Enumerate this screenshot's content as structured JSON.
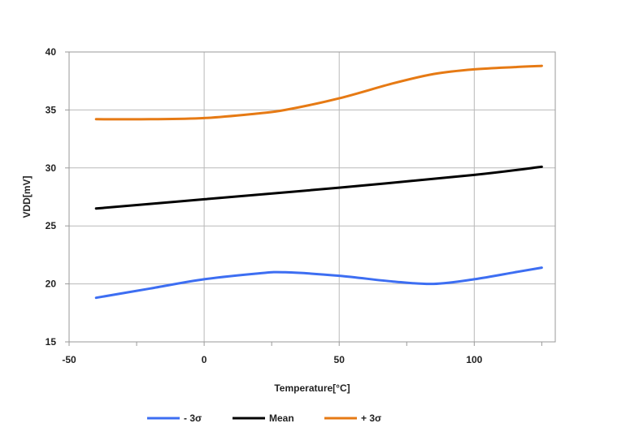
{
  "chart_data": {
    "type": "line",
    "xlabel": "Temperature[°C]",
    "ylabel": "VDD[mV]",
    "xlim": [
      -50,
      130
    ],
    "ylim": [
      15,
      40
    ],
    "xticks": [
      -50,
      0,
      50,
      100
    ],
    "yticks": [
      15,
      20,
      25,
      30,
      35,
      40
    ],
    "grid": true,
    "legend_position": "bottom",
    "series": [
      {
        "name": "- 3σ",
        "color": "#3d6ef2",
        "x": [
          -40,
          -20,
          0,
          20,
          30,
          50,
          70,
          85,
          100,
          115,
          125
        ],
        "y": [
          18.8,
          19.6,
          20.4,
          20.9,
          21.0,
          20.7,
          20.2,
          20.0,
          20.4,
          21.0,
          21.4
        ]
      },
      {
        "name": "Mean",
        "color": "#000000",
        "x": [
          -40,
          0,
          50,
          100,
          125
        ],
        "y": [
          26.5,
          27.3,
          28.3,
          29.4,
          30.1
        ]
      },
      {
        "name": "+ 3σ",
        "color": "#e67a14",
        "x": [
          -40,
          -20,
          0,
          20,
          30,
          50,
          70,
          85,
          100,
          115,
          125
        ],
        "y": [
          34.2,
          34.2,
          34.3,
          34.7,
          35.0,
          36.0,
          37.3,
          38.1,
          38.5,
          38.7,
          38.8
        ]
      }
    ]
  }
}
